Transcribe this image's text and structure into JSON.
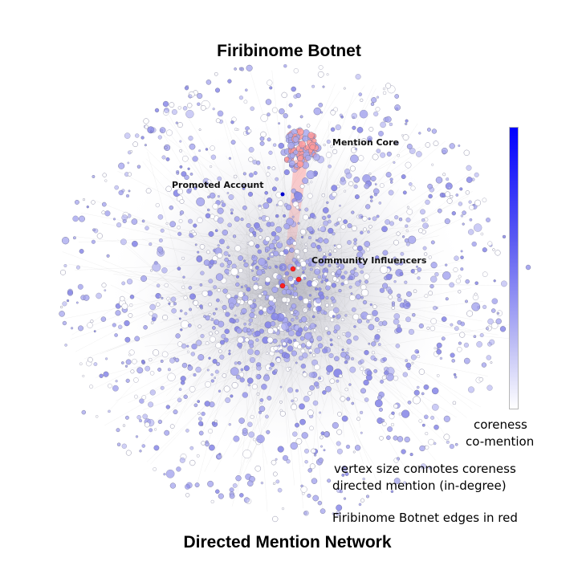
{
  "title": "Firibinome Botnet",
  "subtitle_bottom": "Directed Mention Network",
  "annotations": {
    "mention_core": "Mention Core",
    "promoted_account": "Promoted Account",
    "community_influencers": "Community Influencers"
  },
  "colorbar": {
    "label_line1": "coreness",
    "label_line2": "co-mention",
    "color_high": "#0000ff",
    "color_low": "#ffffff"
  },
  "legend": {
    "size_line1": "vertex size connotes coreness",
    "size_line2": "directed mention (in-degree)",
    "edges_note": "Firibinome Botnet edges in red"
  },
  "colors": {
    "node_fill": "#a9a9ef",
    "node_stroke": "#6f6f8f",
    "edge_gray": "#9a9a9a",
    "botnet_red": "#ff2020",
    "core_fill": "#ff9a9a",
    "promoted_node": "#0000cc"
  }
}
